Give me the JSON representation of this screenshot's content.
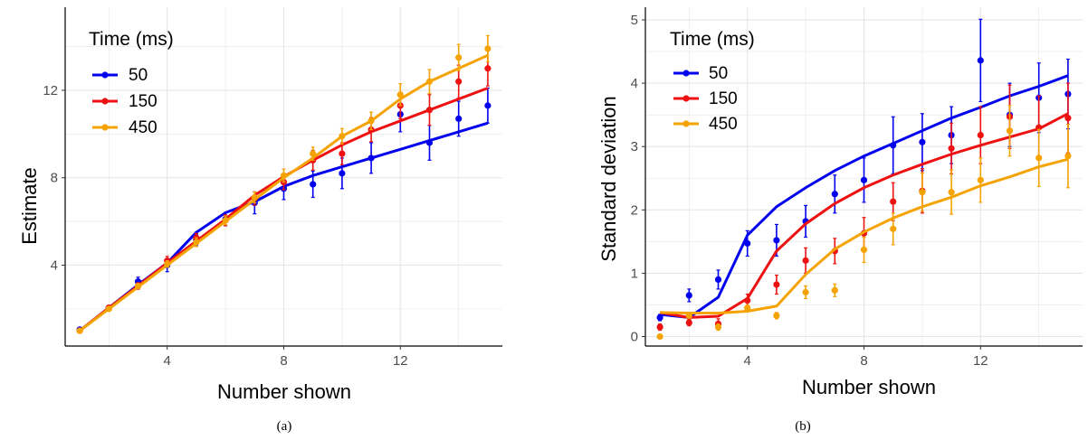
{
  "chart_data": [
    {
      "type": "line",
      "caption": "(a)",
      "xlabel": "Number shown",
      "ylabel": "Estimate",
      "xlim": [
        0.5,
        15.5
      ],
      "ylim": [
        0.3,
        15.8
      ],
      "xticks": [
        4,
        8,
        12
      ],
      "yticks": [
        4,
        8,
        12
      ],
      "grid": true,
      "legend": {
        "title": "Time (ms)",
        "position": "top-left"
      },
      "x": [
        1,
        2,
        3,
        4,
        5,
        6,
        7,
        8,
        9,
        10,
        11,
        12,
        13,
        14,
        15
      ],
      "series": [
        {
          "name": "50",
          "color": "#0000ee",
          "line": [
            1.0,
            2.05,
            3.1,
            4.1,
            5.5,
            6.4,
            6.9,
            7.6,
            8.1,
            8.5,
            8.9,
            9.3,
            9.7,
            10.1,
            10.5
          ],
          "points": [
            1.05,
            2.05,
            3.25,
            4.0,
            5.15,
            6.1,
            6.85,
            7.5,
            7.7,
            8.2,
            8.9,
            10.9,
            9.6,
            10.7,
            11.3
          ],
          "errors": [
            0.05,
            0.1,
            0.2,
            0.3,
            0.25,
            0.3,
            0.5,
            0.5,
            0.6,
            0.7,
            0.7,
            0.8,
            0.8,
            0.8,
            0.8
          ]
        },
        {
          "name": "150",
          "color": "#ee1111",
          "line": [
            1.0,
            2.05,
            3.05,
            4.1,
            5.1,
            6.1,
            7.2,
            8.05,
            8.8,
            9.5,
            10.1,
            10.6,
            11.1,
            11.6,
            12.1
          ],
          "points": [
            1.0,
            2.05,
            3.05,
            4.2,
            5.25,
            6.05,
            7.05,
            7.8,
            8.8,
            9.1,
            10.2,
            11.3,
            11.1,
            12.4,
            13.0
          ],
          "errors": [
            0.05,
            0.1,
            0.15,
            0.2,
            0.2,
            0.25,
            0.3,
            0.35,
            0.45,
            0.5,
            0.55,
            0.6,
            0.7,
            0.75,
            0.8
          ]
        },
        {
          "name": "450",
          "color": "#f5a300",
          "line": [
            1.0,
            2.0,
            3.0,
            4.0,
            5.0,
            6.0,
            7.0,
            8.0,
            8.9,
            9.9,
            10.6,
            11.6,
            12.4,
            13.0,
            13.6
          ],
          "points": [
            1.0,
            2.0,
            3.05,
            4.05,
            5.05,
            6.05,
            7.1,
            8.1,
            9.1,
            9.9,
            10.6,
            11.8,
            12.4,
            13.5,
            13.9
          ],
          "errors": [
            0.05,
            0.1,
            0.1,
            0.15,
            0.2,
            0.2,
            0.25,
            0.3,
            0.3,
            0.35,
            0.4,
            0.5,
            0.55,
            0.6,
            0.6
          ]
        }
      ]
    },
    {
      "type": "line",
      "caption": "(b)",
      "xlabel": "Number shown",
      "ylabel": "Standard deviation",
      "xlim": [
        0.5,
        15.5
      ],
      "ylim": [
        -0.15,
        5.2
      ],
      "xticks": [
        4,
        8,
        12
      ],
      "yticks": [
        0,
        1,
        2,
        3,
        4,
        5
      ],
      "grid": true,
      "legend": {
        "title": "Time (ms)",
        "position": "top-left"
      },
      "x": [
        1,
        2,
        3,
        4,
        5,
        6,
        7,
        8,
        9,
        10,
        11,
        12,
        13,
        14,
        15
      ],
      "series": [
        {
          "name": "50",
          "color": "#0000ee",
          "line": [
            0.35,
            0.3,
            0.62,
            1.6,
            2.05,
            2.35,
            2.62,
            2.85,
            3.05,
            3.25,
            3.45,
            3.62,
            3.8,
            3.95,
            4.12
          ],
          "points": [
            0.3,
            0.65,
            0.9,
            1.47,
            1.52,
            1.82,
            2.25,
            2.47,
            3.02,
            3.07,
            3.18,
            4.36,
            3.5,
            3.77,
            3.83
          ],
          "errors": [
            0.05,
            0.1,
            0.15,
            0.2,
            0.25,
            0.25,
            0.3,
            0.35,
            0.45,
            0.45,
            0.45,
            0.65,
            0.5,
            0.55,
            0.55
          ]
        },
        {
          "name": "150",
          "color": "#ee1111",
          "line": [
            0.38,
            0.3,
            0.32,
            0.6,
            1.35,
            1.78,
            2.1,
            2.35,
            2.55,
            2.72,
            2.88,
            3.02,
            3.15,
            3.28,
            3.52
          ],
          "points": [
            0.15,
            0.22,
            0.2,
            0.57,
            0.82,
            1.2,
            1.35,
            1.63,
            2.13,
            2.3,
            2.97,
            3.18,
            3.47,
            3.3,
            3.45
          ],
          "errors": [
            0.05,
            0.05,
            0.08,
            0.1,
            0.15,
            0.2,
            0.2,
            0.25,
            0.3,
            0.35,
            0.4,
            0.45,
            0.5,
            0.5,
            0.55
          ]
        },
        {
          "name": "450",
          "color": "#f5a300",
          "line": [
            0.38,
            0.37,
            0.37,
            0.4,
            0.48,
            0.98,
            1.38,
            1.65,
            1.87,
            2.05,
            2.2,
            2.38,
            2.52,
            2.68,
            2.8
          ],
          "points": [
            0.0,
            0.33,
            0.15,
            0.45,
            0.33,
            0.7,
            0.73,
            1.37,
            1.7,
            2.28,
            2.28,
            2.47,
            3.25,
            2.82,
            2.85
          ],
          "errors": [
            0.02,
            0.04,
            0.05,
            0.05,
            0.05,
            0.1,
            0.1,
            0.2,
            0.25,
            0.3,
            0.35,
            0.35,
            0.4,
            0.45,
            0.5
          ]
        }
      ]
    }
  ]
}
